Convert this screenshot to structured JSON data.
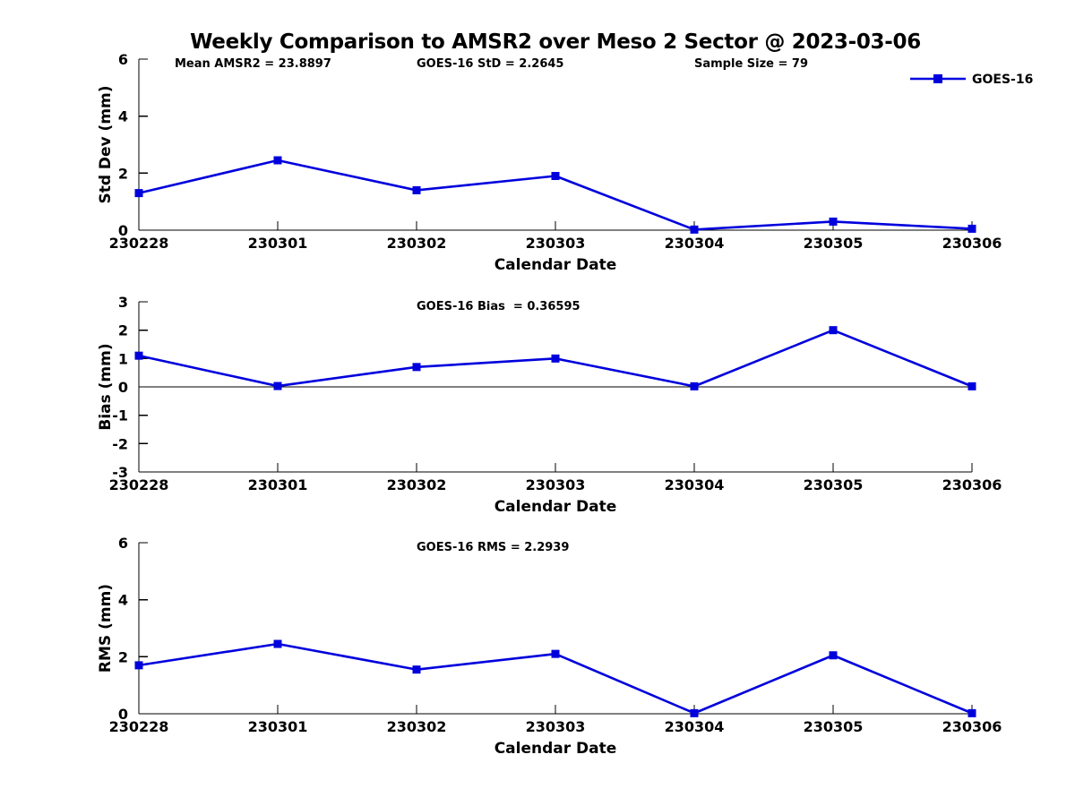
{
  "title": "Weekly Comparison to AMSR2 over Meso 2 Sector @ 2023-03-06",
  "colors": {
    "series_blue": "#0000dd",
    "axis_black": "#000000",
    "background": "#ffffff"
  },
  "legend": {
    "label": "GOES-16",
    "position": "top-right-subplot-1"
  },
  "chart_data": [
    {
      "type": "line",
      "name": "std_dev",
      "ylabel": "Std Dev (mm)",
      "xlabel": "Calendar Date",
      "categories": [
        "230228",
        "230301",
        "230302",
        "230303",
        "230304",
        "230305",
        "230306"
      ],
      "series": [
        {
          "name": "GOES-16",
          "values": [
            1.3,
            2.45,
            1.4,
            1.9,
            0.02,
            0.3,
            0.05
          ]
        }
      ],
      "ylim": [
        0,
        6
      ],
      "yticks": [
        0,
        2,
        4,
        6
      ],
      "annotations": [
        "Mean AMSR2 = 23.8897",
        "GOES-16 StD = 2.2645",
        "Sample Size = 79"
      ],
      "grid": false,
      "zero_line": false,
      "legend_shown": true
    },
    {
      "type": "line",
      "name": "bias",
      "ylabel": "Bias (mm)",
      "xlabel": "Calendar Date",
      "categories": [
        "230228",
        "230301",
        "230302",
        "230303",
        "230304",
        "230305",
        "230306"
      ],
      "series": [
        {
          "name": "GOES-16",
          "values": [
            1.1,
            0.03,
            0.7,
            1.0,
            0.02,
            2.0,
            0.02
          ]
        }
      ],
      "ylim": [
        -3,
        3
      ],
      "yticks": [
        -3,
        -2,
        -1,
        0,
        1,
        2,
        3
      ],
      "annotations": [
        "GOES-16 Bias  = 0.36595"
      ],
      "grid": false,
      "zero_line": true,
      "legend_shown": false
    },
    {
      "type": "line",
      "name": "rms",
      "ylabel": "RMS (mm)",
      "xlabel": "Calendar Date",
      "categories": [
        "230228",
        "230301",
        "230302",
        "230303",
        "230304",
        "230305",
        "230306"
      ],
      "series": [
        {
          "name": "GOES-16",
          "values": [
            1.7,
            2.45,
            1.55,
            2.1,
            0.02,
            2.05,
            0.02
          ]
        }
      ],
      "ylim": [
        0,
        6
      ],
      "yticks": [
        0,
        2,
        4,
        6
      ],
      "annotations": [
        "GOES-16 RMS = 2.2939"
      ],
      "grid": false,
      "zero_line": false,
      "legend_shown": false
    }
  ]
}
